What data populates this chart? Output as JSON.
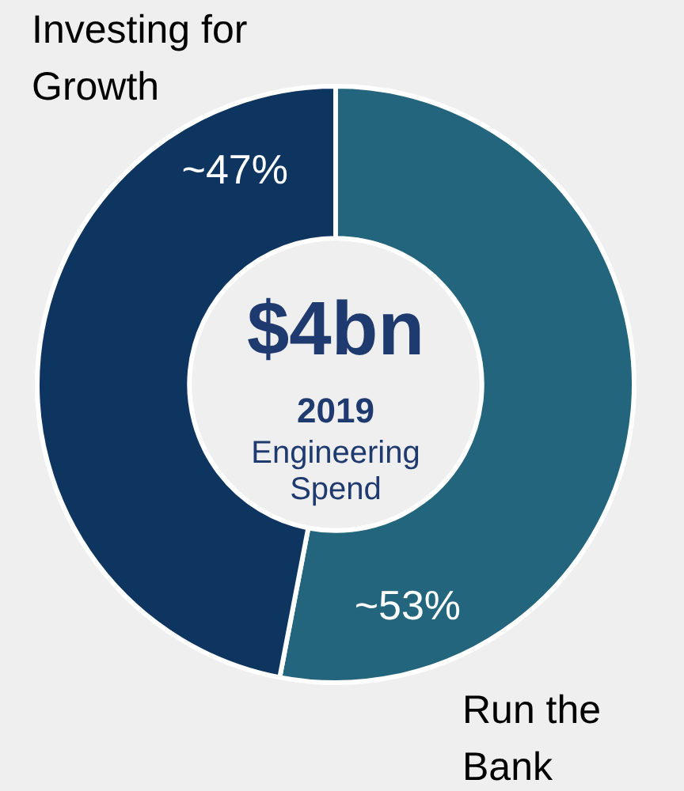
{
  "chart_data": {
    "type": "donut",
    "categories": [
      "Run the Bank",
      "Investing for Growth"
    ],
    "values": [
      53,
      47
    ],
    "colors": [
      "#23657d",
      "#0d3560"
    ],
    "value_labels": [
      "~53%",
      "~47%"
    ],
    "annotations": [
      "$4bn",
      "2019",
      "Engineering Spend"
    ],
    "legend": false
  }
}
